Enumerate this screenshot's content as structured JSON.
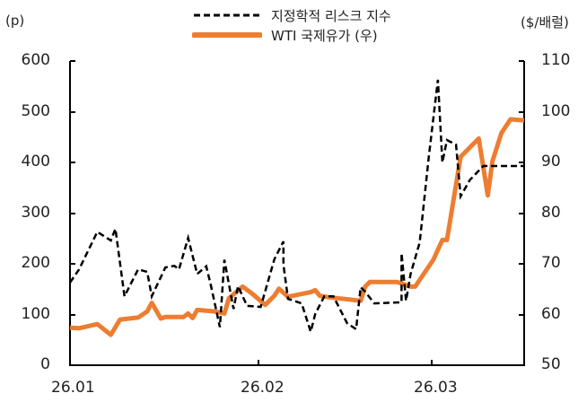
{
  "chart_data": {
    "type": "line",
    "title": "",
    "left_unit": "(p)",
    "right_unit": "($/배럴)",
    "xlabel": "",
    "ylabel": "",
    "x_ticks": [
      "26.01",
      "26.02",
      "26.03"
    ],
    "y_left_ticks": [
      "600",
      "500",
      "400",
      "300",
      "200",
      "100",
      "0"
    ],
    "y_right_ticks": [
      "110",
      "100",
      "90",
      "80",
      "70",
      "60",
      "50"
    ],
    "ylim_left": [
      0,
      600
    ],
    "ylim_right": [
      50,
      110
    ],
    "grid": false,
    "legend_position": "top",
    "colors": {
      "risk": "#000000",
      "wti": "#ED7D31"
    },
    "series": [
      {
        "name": "지정학적 리스크 지수",
        "axis": "left",
        "style": "dashed",
        "x": [
          0,
          0.02,
          0.06,
          0.09,
          0.1,
          0.12,
          0.15,
          0.17,
          0.18,
          0.21,
          0.23,
          0.24,
          0.26,
          0.28,
          0.3,
          0.31,
          0.33,
          0.34,
          0.36,
          0.37,
          0.39,
          0.42,
          0.45,
          0.47,
          0.47,
          0.48,
          0.51,
          0.53,
          0.54,
          0.56,
          0.58,
          0.61,
          0.63,
          0.64,
          0.65,
          0.67,
          0.73,
          0.73,
          0.74,
          0.75,
          0.77,
          0.79,
          0.81,
          0.82,
          0.83,
          0.85,
          0.86,
          0.88,
          0.91,
          0.95,
          1.0
        ],
        "values": [
          163,
          189,
          263,
          246,
          269,
          136,
          189,
          184,
          136,
          193,
          196,
          189,
          251,
          180,
          195,
          158,
          75,
          208,
          111,
          156,
          117,
          115,
          209,
          244,
          198,
          131,
          122,
          66,
          101,
          136,
          136,
          83,
          71,
          154,
          145,
          122,
          124,
          221,
          127,
          180,
          242,
          410,
          563,
          400,
          444,
          435,
          333,
          365,
          393,
          393,
          393
        ]
      },
      {
        "name": "WTI 국제유가 (우)",
        "axis": "right",
        "style": "solid",
        "x": [
          0,
          0.02,
          0.06,
          0.09,
          0.11,
          0.15,
          0.17,
          0.18,
          0.2,
          0.21,
          0.25,
          0.26,
          0.27,
          0.28,
          0.32,
          0.34,
          0.35,
          0.38,
          0.4,
          0.43,
          0.45,
          0.46,
          0.48,
          0.53,
          0.54,
          0.55,
          0.57,
          0.64,
          0.65,
          0.66,
          0.72,
          0.75,
          0.76,
          0.8,
          0.82,
          0.83,
          0.86,
          0.9,
          0.92,
          0.93,
          0.95,
          0.97,
          1.0
        ],
        "values": [
          57.4,
          57.3,
          58.1,
          56.0,
          59.0,
          59.4,
          60.6,
          62.3,
          59.2,
          59.5,
          59.5,
          60.2,
          59.3,
          60.9,
          60.6,
          60.2,
          63.2,
          65.5,
          64.2,
          61.9,
          63.7,
          65.1,
          63.5,
          64.4,
          64.8,
          63.7,
          63.4,
          62.7,
          65.5,
          66.4,
          66.4,
          65.5,
          65.5,
          70.8,
          74.7,
          74.7,
          91.1,
          94.7,
          83.5,
          90.2,
          95.8,
          98.5,
          98.3
        ]
      }
    ]
  }
}
